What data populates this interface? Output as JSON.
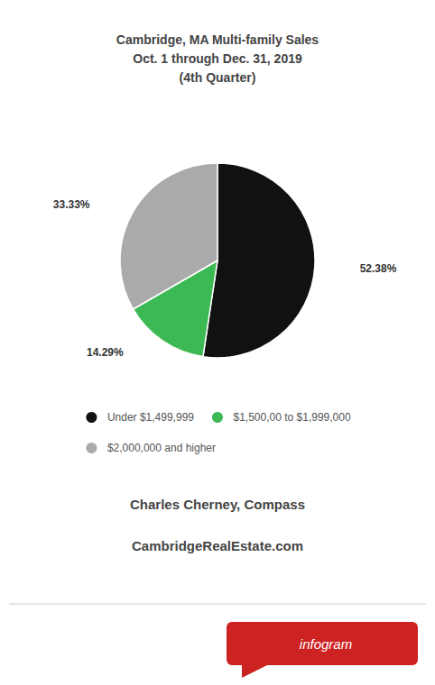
{
  "chart_data": {
    "type": "pie",
    "title": "Cambridge, MA Multi-family Sales\nOct. 1 through Dec. 31, 2019\n(4th Quarter)",
    "categories": [
      "Under $1,499,999",
      "$1,500,00 to $1,999,000",
      "$2,000,000 and higher"
    ],
    "values": [
      52.38,
      14.29,
      33.33
    ],
    "value_labels": [
      "52.38%",
      "14.29%",
      "33.33%"
    ],
    "colors": [
      "#111111",
      "#3cb954",
      "#aaaaaa"
    ],
    "data_labels": true,
    "legend": "bottom",
    "annotations": [
      "Charles Cherney, Compass",
      "CambridgeRealEstate.com",
      "infogram"
    ]
  }
}
